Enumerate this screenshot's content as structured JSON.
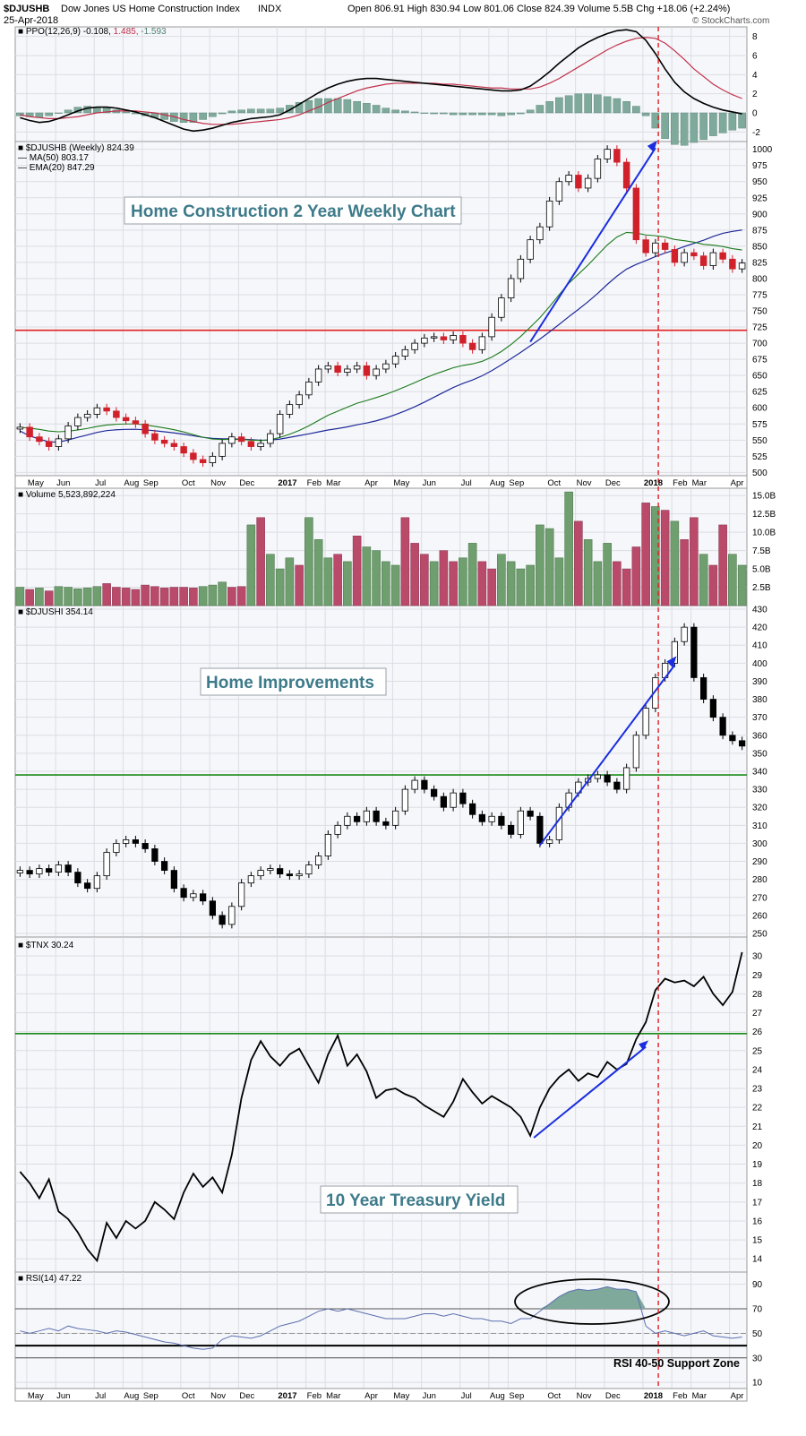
{
  "header": {
    "symbol": "$DJUSHB",
    "name": "Dow Jones US Home Construction Index",
    "exchange": "INDX",
    "date": "25-Apr-2018",
    "ohlc": "Open 806.91  High 830.94  Low 801.06  Close 824.39  Volume 5.5B  Chg +18.06 (+2.24%)",
    "watermark": "© StockCharts.com"
  },
  "x_axis": {
    "top_labels": [
      "May",
      "Jun",
      "Jul",
      "Aug",
      "Sep",
      "Oct",
      "Nov",
      "Dec",
      "2017",
      "Feb",
      "Mar",
      "Apr",
      "May",
      "Jun",
      "Jul",
      "Aug",
      "Sep",
      "Oct",
      "Nov",
      "Dec",
      "2018",
      "Feb",
      "Mar",
      "Apr"
    ],
    "bottom_labels": [
      "May",
      "Jun",
      "Jul",
      "Aug",
      "Sep",
      "Oct",
      "Nov",
      "Dec",
      "2017",
      "Feb",
      "Mar",
      "Apr",
      "May",
      "Jun",
      "Jul",
      "Aug",
      "Sep",
      "Oct",
      "Nov",
      "Dec",
      "2018",
      "Feb",
      "Mar",
      "Apr"
    ]
  },
  "chart_data": [
    {
      "panel": "ppo",
      "type": "line",
      "legend": "PPO(12,26,9)",
      "legend_values": [
        "-0.108",
        "1.485",
        "-1.593"
      ],
      "ylim": [
        -3,
        9
      ],
      "yticks": [
        8,
        6,
        4,
        2,
        0,
        -2
      ],
      "ppo": [
        -0.5,
        -0.8,
        -1.0,
        -0.9,
        -0.6,
        -0.2,
        0.2,
        0.5,
        0.6,
        0.6,
        0.5,
        0.3,
        0.1,
        -0.2,
        -0.5,
        -0.9,
        -1.3,
        -1.7,
        -1.9,
        -1.8,
        -1.6,
        -1.3,
        -1.0,
        -0.8,
        -0.6,
        -0.5,
        -0.4,
        -0.2,
        0.3,
        0.9,
        1.5,
        2.1,
        2.6,
        3.0,
        3.3,
        3.5,
        3.6,
        3.6,
        3.5,
        3.4,
        3.3,
        3.2,
        3.1,
        3.0,
        2.9,
        2.8,
        2.7,
        2.6,
        2.5,
        2.4,
        2.3,
        2.3,
        2.4,
        2.8,
        3.5,
        4.3,
        5.2,
        6.0,
        6.8,
        7.4,
        7.9,
        8.3,
        8.6,
        8.7,
        8.5,
        7.6,
        6.2,
        4.6,
        3.2,
        2.2,
        1.5,
        1.0,
        0.6,
        0.3,
        0.1,
        -0.1
      ],
      "signal": [
        -0.2,
        -0.4,
        -0.5,
        -0.6,
        -0.6,
        -0.5,
        -0.4,
        -0.2,
        0.0,
        0.1,
        0.2,
        0.2,
        0.2,
        0.1,
        0.0,
        -0.2,
        -0.4,
        -0.7,
        -0.9,
        -1.1,
        -1.2,
        -1.2,
        -1.2,
        -1.1,
        -1.0,
        -0.9,
        -0.8,
        -0.7,
        -0.5,
        -0.2,
        0.2,
        0.6,
        1.1,
        1.5,
        1.9,
        2.3,
        2.6,
        2.8,
        3.0,
        3.1,
        3.1,
        3.1,
        3.1,
        3.1,
        3.0,
        3.0,
        2.9,
        2.8,
        2.7,
        2.6,
        2.6,
        2.5,
        2.5,
        2.5,
        2.7,
        3.1,
        3.6,
        4.2,
        4.8,
        5.4,
        6.0,
        6.6,
        7.1,
        7.5,
        7.8,
        7.9,
        7.8,
        7.3,
        6.5,
        5.6,
        4.6,
        3.8,
        3.0,
        2.4,
        1.9,
        1.5
      ]
    },
    {
      "panel": "djushb",
      "type": "candlestick",
      "legend": "$DJUSHB (Weekly) 824.39",
      "ma_legend": "MA(50) 803.17",
      "ema_legend": "EMA(20) 847.29",
      "annotation": "Home Construction 2 Year Weekly Chart",
      "ylim": [
        495,
        1012
      ],
      "yticks": [
        1000,
        975,
        950,
        925,
        900,
        875,
        850,
        825,
        800,
        775,
        750,
        725,
        700,
        675,
        650,
        625,
        600,
        575,
        550,
        525,
        500
      ],
      "support_level": 720,
      "close": [
        570,
        555,
        548,
        540,
        552,
        572,
        585,
        590,
        600,
        595,
        585,
        580,
        575,
        560,
        550,
        545,
        540,
        530,
        520,
        515,
        525,
        545,
        555,
        548,
        540,
        545,
        560,
        590,
        605,
        620,
        640,
        660,
        665,
        655,
        660,
        665,
        650,
        660,
        668,
        680,
        690,
        700,
        708,
        710,
        705,
        712,
        700,
        690,
        710,
        740,
        770,
        800,
        830,
        860,
        880,
        920,
        950,
        960,
        940,
        955,
        985,
        1000,
        980,
        940,
        860,
        840,
        855,
        845,
        825,
        840,
        835,
        820,
        840,
        830,
        815,
        824
      ]
    },
    {
      "panel": "volume",
      "type": "bar",
      "legend": "Volume 5,523,892,224",
      "ylim": [
        0,
        16
      ],
      "yticks": [
        "15.0B",
        "12.5B",
        "10.0B",
        "7.5B",
        "5.0B",
        "2.5B"
      ],
      "values": [
        2.5,
        2.2,
        2.4,
        2.0,
        2.6,
        2.5,
        2.3,
        2.4,
        2.6,
        3.0,
        2.5,
        2.4,
        2.2,
        2.8,
        2.6,
        2.4,
        2.5,
        2.5,
        2.4,
        2.6,
        2.8,
        3.2,
        2.5,
        2.6,
        11.0,
        12.0,
        7.0,
        5.0,
        6.5,
        5.5,
        12.0,
        9.0,
        6.5,
        7.0,
        6.0,
        9.5,
        8.0,
        7.5,
        6.0,
        5.5,
        12.0,
        8.5,
        7.0,
        6.0,
        7.5,
        6.0,
        6.5,
        8.5,
        6.0,
        5.0,
        7.0,
        6.0,
        5.0,
        5.5,
        11.0,
        10.5,
        6.5,
        15.5,
        11.5,
        9.0,
        6.0,
        8.5,
        6.0,
        5.0,
        8.0,
        14.0,
        13.5,
        13.0,
        11.5,
        9.0,
        12.0,
        7.0,
        5.5,
        11.0,
        7.0,
        5.5
      ],
      "up": [
        true,
        false,
        true,
        false,
        true,
        true,
        true,
        true,
        true,
        false,
        false,
        false,
        false,
        false,
        false,
        false,
        false,
        false,
        false,
        true,
        true,
        true,
        false,
        false,
        true,
        false,
        true,
        true,
        true,
        false,
        true,
        true,
        true,
        false,
        true,
        false,
        true,
        true,
        true,
        true,
        false,
        false,
        false,
        true,
        false,
        false,
        true,
        true,
        false,
        false,
        true,
        true,
        true,
        true,
        true,
        true,
        true,
        true,
        false,
        true,
        true,
        true,
        false,
        false,
        false,
        false,
        true,
        false,
        true,
        false,
        false,
        true,
        false,
        false,
        true,
        true
      ]
    },
    {
      "panel": "djushi",
      "type": "candlestick",
      "legend": "$DJUSHI 354.14",
      "annotation": "Home Improvements",
      "ylim": [
        248,
        432
      ],
      "yticks": [
        430,
        420,
        410,
        400,
        390,
        380,
        370,
        360,
        350,
        340,
        330,
        320,
        310,
        300,
        290,
        280,
        270,
        260,
        250
      ],
      "support_level": 338,
      "close": [
        285,
        283,
        286,
        284,
        288,
        284,
        278,
        275,
        282,
        295,
        300,
        302,
        300,
        297,
        290,
        285,
        275,
        270,
        272,
        268,
        260,
        255,
        265,
        278,
        282,
        285,
        286,
        283,
        282,
        283,
        288,
        293,
        305,
        310,
        315,
        312,
        318,
        312,
        310,
        318,
        330,
        335,
        330,
        326,
        320,
        328,
        322,
        316,
        312,
        315,
        310,
        305,
        318,
        315,
        300,
        302,
        320,
        328,
        334,
        336,
        338,
        334,
        330,
        342,
        360,
        375,
        392,
        400,
        412,
        420,
        392,
        380,
        370,
        360,
        357,
        354
      ]
    },
    {
      "panel": "tnx",
      "type": "line",
      "legend": "$TNX 30.24",
      "annotation": "10 Year Treasury Yield",
      "ylim": [
        13.3,
        31
      ],
      "yticks": [
        30,
        29,
        28,
        27,
        26,
        25,
        24,
        23,
        22,
        21,
        20,
        19,
        18,
        17,
        16,
        15,
        14
      ],
      "support_level": 25.9,
      "values": [
        18.6,
        18.0,
        17.2,
        18.2,
        16.5,
        16.1,
        15.4,
        14.5,
        13.9,
        15.9,
        15.1,
        16.0,
        15.6,
        16.0,
        17.0,
        16.6,
        16.1,
        17.5,
        18.5,
        17.8,
        18.3,
        17.5,
        19.5,
        22.5,
        24.5,
        25.5,
        24.7,
        24.2,
        24.8,
        25.1,
        24.2,
        23.3,
        24.8,
        25.8,
        24.2,
        24.8,
        23.9,
        22.5,
        22.9,
        23.0,
        22.7,
        22.5,
        22.1,
        21.8,
        21.5,
        22.3,
        23.5,
        22.8,
        22.2,
        22.6,
        22.3,
        22.0,
        21.5,
        20.5,
        22.0,
        23.0,
        23.6,
        24.0,
        23.4,
        23.8,
        23.6,
        24.4,
        24.0,
        24.3,
        25.6,
        26.5,
        28.2,
        28.8,
        28.6,
        28.7,
        28.4,
        28.9,
        28.0,
        27.4,
        28.1,
        30.2
      ]
    },
    {
      "panel": "rsi",
      "type": "line",
      "legend": "RSI(14) 47.22",
      "annotation": "RSI 40-50 Support Zone",
      "ylim": [
        5,
        100
      ],
      "yticks": [
        90,
        70,
        50,
        30,
        10
      ],
      "values": [
        52,
        50,
        52,
        54,
        52,
        56,
        54,
        53,
        52,
        50,
        52,
        51,
        49,
        47,
        45,
        43,
        42,
        40,
        38,
        37,
        38,
        45,
        48,
        47,
        46,
        48,
        52,
        56,
        58,
        60,
        64,
        68,
        70,
        68,
        70,
        68,
        66,
        64,
        62,
        62,
        62,
        64,
        66,
        66,
        64,
        66,
        64,
        62,
        62,
        60,
        60,
        58,
        62,
        62,
        68,
        74,
        80,
        84,
        86,
        85,
        86,
        88,
        86,
        86,
        84,
        56,
        50,
        52,
        50,
        48,
        50,
        52,
        48,
        47,
        46,
        47
      ]
    }
  ]
}
